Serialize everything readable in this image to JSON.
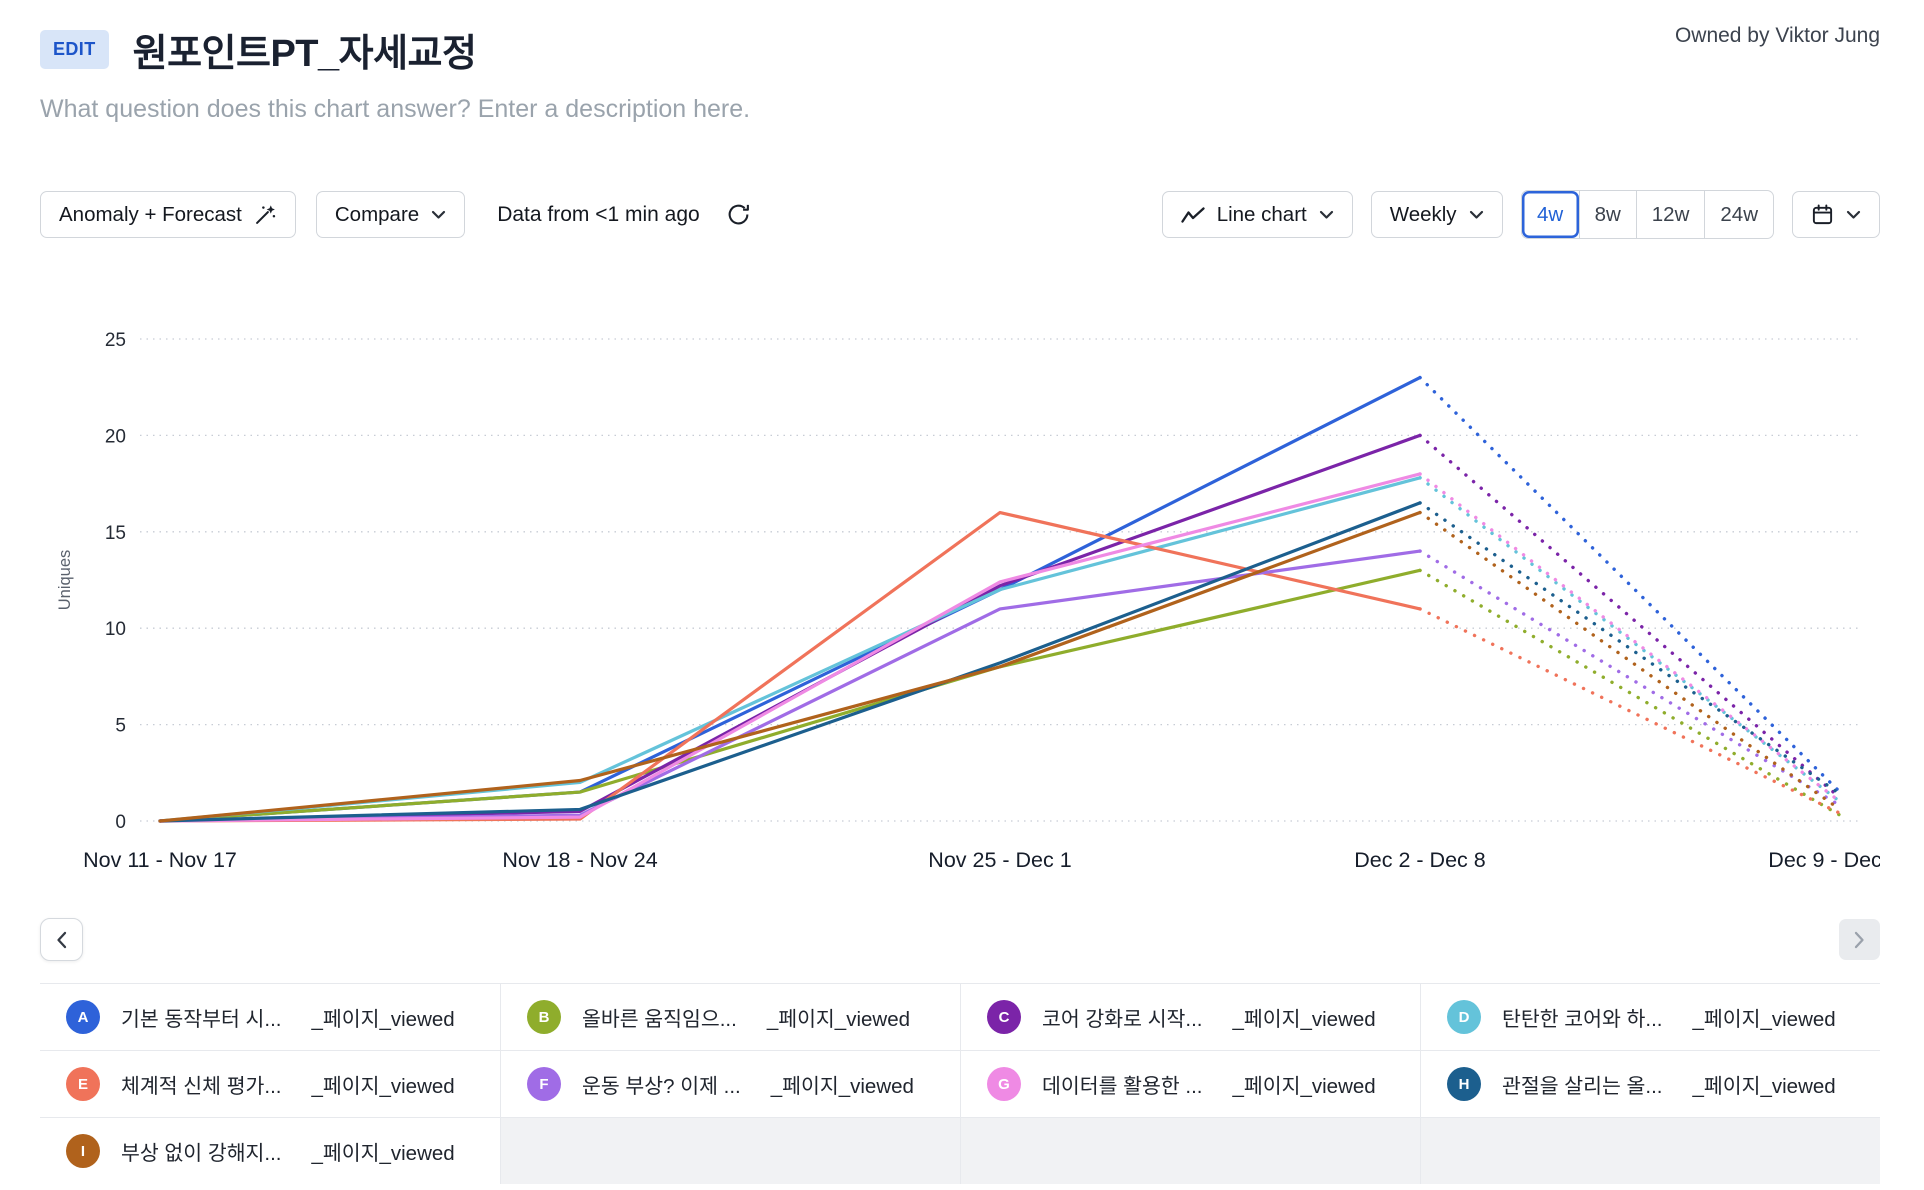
{
  "header": {
    "edit_badge": "EDIT",
    "title": "원포인트PT_자세교정",
    "owner": "Owned by Viktor Jung",
    "description_placeholder": "What question does this chart answer? Enter a description here."
  },
  "toolbar": {
    "anomaly_forecast_label": "Anomaly + Forecast",
    "compare_label": "Compare",
    "freshness_text": "Data from <1 min ago",
    "chart_type_label": "Line chart",
    "interval_label": "Weekly",
    "ranges": [
      "4w",
      "8w",
      "12w",
      "24w"
    ],
    "active_range": "4w",
    "accent_color": "#2d64da",
    "icons": {
      "anomaly": "magic-wand-icon",
      "refresh": "refresh-icon",
      "chart_type": "line-chart-icon",
      "date_picker": "calendar-icon",
      "dropdown": "chevron-down-icon"
    }
  },
  "chart_data": {
    "type": "line",
    "ylabel": "Uniques",
    "ylim": [
      0,
      25
    ],
    "yticks": [
      0,
      5,
      10,
      15,
      20,
      25
    ],
    "grid": "dotted-horizontal",
    "legend_position": "bottom-grid-4col",
    "categories": [
      "Nov 11 - Nov 17",
      "Nov 18 - Nov 24",
      "Nov 25 - Dec 1",
      "Dec 2 - Dec 8",
      "Dec 9 - Dec 15"
    ],
    "forecast_start_category": "Dec 2 - Dec 8",
    "forecast_category": "Dec 9 - Dec 15",
    "series": [
      {
        "letter": "A",
        "label": "기본 동작부터 시...",
        "event_suffix": "_페이지_viewed",
        "color": "#2e62d9",
        "values": [
          0,
          1.5,
          12,
          23
        ],
        "forecast_value": 1.5
      },
      {
        "letter": "B",
        "label": "올바른 움직임으...",
        "event_suffix": "_페이지_viewed",
        "color": "#8fad2c",
        "values": [
          0,
          1.5,
          8,
          13
        ],
        "forecast_value": 0.3
      },
      {
        "letter": "C",
        "label": "코어 강화로 시작...",
        "event_suffix": "_페이지_viewed",
        "color": "#7b24a8",
        "values": [
          0,
          0.5,
          12.2,
          20
        ],
        "forecast_value": 1.2
      },
      {
        "letter": "D",
        "label": "탄탄한 코어와 하...",
        "event_suffix": "_페이지_viewed",
        "color": "#64c3da",
        "values": [
          0,
          2,
          12,
          17.8
        ],
        "forecast_value": 1.0
      },
      {
        "letter": "E",
        "label": "체계적 신체 평가...",
        "event_suffix": "_페이지_viewed",
        "color": "#f0735a",
        "values": [
          0,
          0.1,
          16,
          11
        ],
        "forecast_value": 0.4
      },
      {
        "letter": "F",
        "label": "운동 부상? 이제 ...",
        "event_suffix": "_페이지_viewed",
        "color": "#a06ce6",
        "values": [
          0,
          0.3,
          11,
          14
        ],
        "forecast_value": 0.8
      },
      {
        "letter": "G",
        "label": "데이터를 활용한 ...",
        "event_suffix": "_페이지_viewed",
        "color": "#ef8ae4",
        "values": [
          0,
          0.2,
          12.4,
          18
        ],
        "forecast_value": 1.0
      },
      {
        "letter": "H",
        "label": "관절을 살리는 올...",
        "event_suffix": "_페이지_viewed",
        "color": "#1c5f8e",
        "values": [
          0,
          0.6,
          8.2,
          16.5
        ],
        "forecast_value": 1.4
      },
      {
        "letter": "I",
        "label": "부상 없이 강해지...",
        "event_suffix": "_페이지_viewed",
        "color": "#b0621c",
        "values": [
          0,
          2.1,
          8,
          16
        ],
        "forecast_value": 0.6
      }
    ]
  },
  "pagination": {
    "prev_icon": "chevron-left-icon",
    "next_icon": "chevron-right-icon"
  }
}
